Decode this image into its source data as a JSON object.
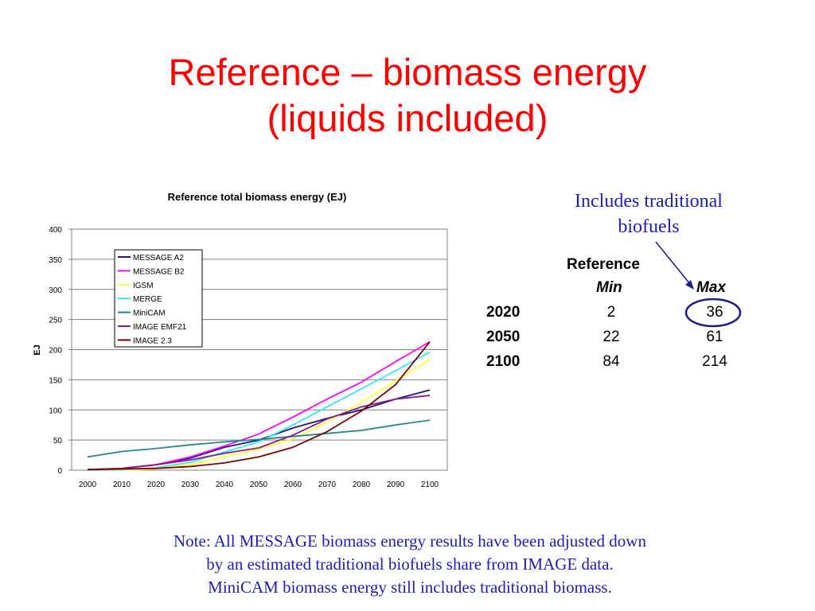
{
  "slide": {
    "title_line1": "Reference – biomass energy",
    "title_line2": "(liquids included)"
  },
  "callout": {
    "line1": "Includes traditional",
    "line2": "biofuels"
  },
  "table": {
    "header": "Reference",
    "col_min": "Min",
    "col_max": "Max",
    "rows": [
      {
        "year": "2020",
        "min": "2",
        "max": "36"
      },
      {
        "year": "2050",
        "min": "22",
        "max": "61"
      },
      {
        "year": "2100",
        "min": "84",
        "max": "214"
      }
    ],
    "circle_color": "#1a1a8c"
  },
  "note": {
    "line1": "Note: All MESSAGE biomass energy results have been adjusted down",
    "line2": "by an estimated traditional biofuels share from IMAGE data.",
    "line3": "MiniCAM biomass energy still includes traditional biomass."
  },
  "chart_data": {
    "type": "line",
    "title": "Reference total biomass energy (EJ)",
    "xlabel": "",
    "ylabel": "EJ",
    "x": [
      2000,
      2010,
      2020,
      2030,
      2040,
      2050,
      2060,
      2070,
      2080,
      2090,
      2100
    ],
    "xlim": [
      2000,
      2100
    ],
    "ylim": [
      0,
      400
    ],
    "yticks": [
      0,
      50,
      100,
      150,
      200,
      250,
      300,
      350,
      400
    ],
    "grid": "horizontal",
    "legend_position": "top-left",
    "series": [
      {
        "name": "MESSAGE A2",
        "color": "#1a1a7a",
        "values": [
          1,
          3,
          9,
          20,
          38,
          50,
          70,
          86,
          100,
          118,
          133
        ]
      },
      {
        "name": "MESSAGE B2",
        "color": "#ff00ff",
        "values": [
          1,
          3,
          9,
          22,
          40,
          60,
          88,
          118,
          146,
          180,
          213
        ]
      },
      {
        "name": "IGSM",
        "color": "#ffff33",
        "values": [
          0,
          0,
          2,
          9,
          22,
          35,
          52,
          80,
          112,
          148,
          184
        ]
      },
      {
        "name": "MERGE",
        "color": "#33e8f0",
        "values": [
          0,
          1,
          4,
          13,
          30,
          47,
          75,
          105,
          135,
          165,
          196
        ]
      },
      {
        "name": "MiniCAM",
        "color": "#1a8a8a",
        "values": [
          22,
          31,
          36,
          42,
          47,
          51,
          56,
          61,
          66,
          75,
          83
        ]
      },
      {
        "name": "IMAGE EMF21",
        "color": "#8b1a8b",
        "values": [
          1,
          3,
          9,
          17,
          28,
          37,
          58,
          85,
          105,
          118,
          124
        ]
      },
      {
        "name": "IMAGE 2.3",
        "color": "#800000",
        "values": [
          1,
          2,
          3,
          6,
          12,
          22,
          38,
          64,
          98,
          142,
          213
        ]
      }
    ]
  }
}
